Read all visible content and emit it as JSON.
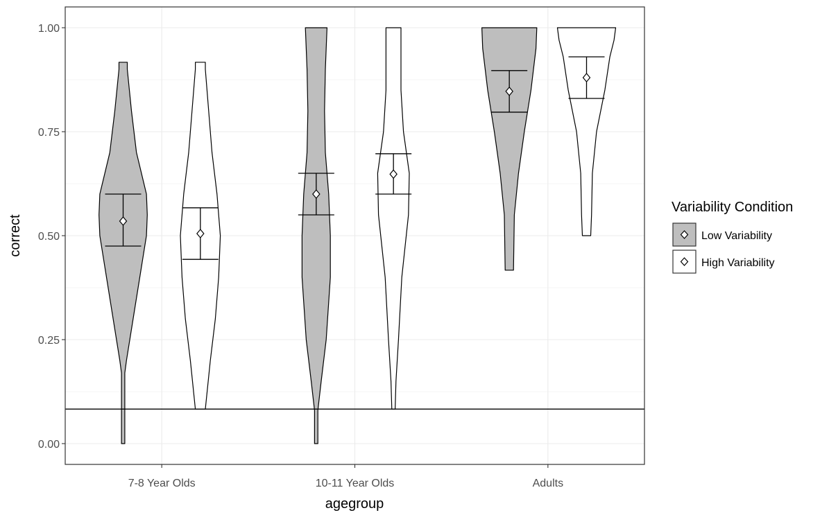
{
  "chart_data": {
    "type": "violin",
    "xlabel": "agegroup",
    "ylabel": "correct",
    "categories": [
      "7-8 Year Olds",
      "10-11 Year Olds",
      "Adults"
    ],
    "ylim": [
      -0.05,
      1.05
    ],
    "yticks": [
      0.0,
      0.25,
      0.5,
      0.75,
      1.0
    ],
    "ytick_labels": [
      "0.00",
      "0.25",
      "0.50",
      "0.75",
      "1.00"
    ],
    "grid": true,
    "reference_line_y": 0.083,
    "legend": {
      "title": "Variability Condition",
      "placement": "right",
      "entries": [
        {
          "label": "Low Variability",
          "fill": "#bebebe"
        },
        {
          "label": "High Variability",
          "fill": "#ffffff"
        }
      ]
    },
    "series": [
      {
        "name": "Low Variability",
        "fill": "#bebebe",
        "groups": [
          {
            "category": "7-8 Year Olds",
            "mean": 0.535,
            "ci_low": 0.475,
            "ci_high": 0.6,
            "profile": [
              [
                0.0,
                0.01
              ],
              [
                0.17,
                0.01
              ],
              [
                0.2,
                0.02
              ],
              [
                0.3,
                0.06
              ],
              [
                0.4,
                0.1
              ],
              [
                0.5,
                0.14
              ],
              [
                0.55,
                0.145
              ],
              [
                0.6,
                0.14
              ],
              [
                0.7,
                0.08
              ],
              [
                0.8,
                0.05
              ],
              [
                0.9,
                0.025
              ],
              [
                0.917,
                0.025
              ]
            ]
          },
          {
            "category": "10-11 Year Olds",
            "mean": 0.6,
            "ci_low": 0.55,
            "ci_high": 0.65,
            "profile": [
              [
                0.0,
                0.01
              ],
              [
                0.08,
                0.01
              ],
              [
                0.15,
                0.03
              ],
              [
                0.25,
                0.06
              ],
              [
                0.4,
                0.085
              ],
              [
                0.5,
                0.085
              ],
              [
                0.6,
                0.075
              ],
              [
                0.7,
                0.055
              ],
              [
                0.8,
                0.05
              ],
              [
                0.9,
                0.055
              ],
              [
                1.0,
                0.065
              ]
            ]
          },
          {
            "category": "Adults",
            "mean": 0.847,
            "ci_low": 0.797,
            "ci_high": 0.897,
            "profile": [
              [
                0.417,
                0.025
              ],
              [
                0.55,
                0.03
              ],
              [
                0.65,
                0.055
              ],
              [
                0.75,
                0.09
              ],
              [
                0.85,
                0.13
              ],
              [
                0.95,
                0.16
              ],
              [
                1.0,
                0.165
              ]
            ]
          }
        ]
      },
      {
        "name": "High Variability",
        "fill": "#ffffff",
        "groups": [
          {
            "category": "7-8 Year Olds",
            "mean": 0.505,
            "ci_low": 0.443,
            "ci_high": 0.567,
            "profile": [
              [
                0.083,
                0.03
              ],
              [
                0.2,
                0.06
              ],
              [
                0.3,
                0.09
              ],
              [
                0.4,
                0.11
              ],
              [
                0.5,
                0.12
              ],
              [
                0.6,
                0.1
              ],
              [
                0.7,
                0.07
              ],
              [
                0.8,
                0.05
              ],
              [
                0.9,
                0.03
              ],
              [
                0.917,
                0.03
              ]
            ]
          },
          {
            "category": "10-11 Year Olds",
            "mean": 0.648,
            "ci_low": 0.6,
            "ci_high": 0.697,
            "profile": [
              [
                0.083,
                0.01
              ],
              [
                0.15,
                0.015
              ],
              [
                0.25,
                0.03
              ],
              [
                0.4,
                0.05
              ],
              [
                0.55,
                0.09
              ],
              [
                0.65,
                0.095
              ],
              [
                0.75,
                0.06
              ],
              [
                0.85,
                0.045
              ],
              [
                0.95,
                0.045
              ],
              [
                1.0,
                0.045
              ]
            ]
          },
          {
            "category": "Adults",
            "mean": 0.88,
            "ci_low": 0.83,
            "ci_high": 0.93,
            "profile": [
              [
                0.5,
                0.025
              ],
              [
                0.55,
                0.03
              ],
              [
                0.65,
                0.035
              ],
              [
                0.75,
                0.06
              ],
              [
                0.85,
                0.11
              ],
              [
                0.93,
                0.14
              ],
              [
                0.97,
                0.165
              ],
              [
                1.0,
                0.175
              ]
            ]
          }
        ]
      }
    ]
  }
}
